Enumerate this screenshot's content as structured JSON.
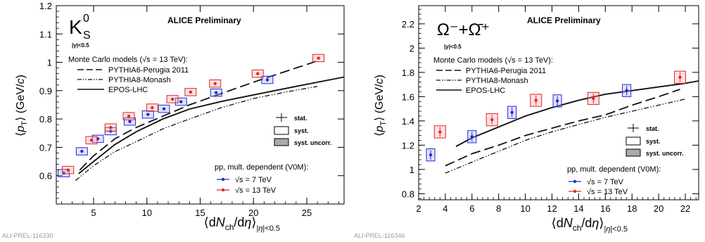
{
  "colors": {
    "seven": "#1f2bd6",
    "thirteen": "#e0262a",
    "seven_box": "#a9b0f2",
    "thirteen_box": "#f2a9a9",
    "curve": "#111111"
  },
  "chart_data": [
    {
      "type": "scatter",
      "preliminary": "ALICE Preliminary",
      "particle": "K",
      "particle_sup": "0",
      "particle_sub": "S",
      "rapidity": "|y|<0.5",
      "ylabel": "⟨p_T⟩ (GeV/c)",
      "xlabel": "⟨dN_ch/dη⟩_|η|<0.5",
      "xlim": [
        1.5,
        28.5
      ],
      "ylim": [
        0.5,
        1.2
      ],
      "xticks": [
        5,
        10,
        15,
        20,
        25
      ],
      "yticks": [
        0.6,
        0.7,
        0.8,
        0.9,
        1.0,
        1.1,
        1.2
      ],
      "xtick_labels": [
        "5",
        "10",
        "15",
        "20",
        "25"
      ],
      "ytick_labels": [
        "0.6",
        "0.7",
        "0.8",
        "0.9",
        "1",
        "1.1",
        "1.2"
      ],
      "footer": "ALI-PREL-116330",
      "mc_title": "Monte Carlo models (√s = 13 TeV):",
      "mc_models": [
        "PYTHIA6-Perugia 2011",
        "PYTHIA8-Monash",
        "EPOS-LHC"
      ],
      "unc_legend": [
        "stat.",
        "syst.",
        "syst. uncorr."
      ],
      "data_title": "pp, mult. dependent (V0M):",
      "data_legend": [
        "√s = 7 TeV",
        "√s = 13 TeV"
      ],
      "series": [
        {
          "name": "√s = 7 TeV",
          "x": [
            2.2,
            3.9,
            5.4,
            6.6,
            8.4,
            10.1,
            11.6,
            13.2,
            16.5,
            21.3
          ],
          "y": [
            0.609,
            0.686,
            0.73,
            0.757,
            0.791,
            0.816,
            0.836,
            0.861,
            0.893,
            0.938
          ]
        },
        {
          "name": "√s = 13 TeV",
          "x": [
            2.6,
            4.8,
            6.6,
            8.3,
            10.5,
            12.4,
            14.1,
            16.4,
            20.4,
            26.1
          ],
          "y": [
            0.62,
            0.725,
            0.77,
            0.81,
            0.84,
            0.87,
            0.895,
            0.925,
            0.96,
            1.015
          ]
        }
      ],
      "curves": [
        {
          "name": "PYTHIA6-Perugia 2011",
          "x": [
            3.7,
            5.0,
            7.0,
            9.0,
            11.5,
            14.0,
            17.0,
            20.0,
            24.0,
            26.0
          ],
          "y": [
            0.62,
            0.67,
            0.73,
            0.77,
            0.81,
            0.85,
            0.89,
            0.93,
            0.98,
            1.005
          ]
        },
        {
          "name": "PYTHIA8-Monash",
          "x": [
            3.3,
            5.0,
            7.0,
            9.0,
            11.5,
            14.0,
            17.0,
            20.0,
            23.0,
            26.0
          ],
          "y": [
            0.583,
            0.635,
            0.685,
            0.72,
            0.765,
            0.8,
            0.84,
            0.872,
            0.895,
            0.915
          ]
        },
        {
          "name": "EPOS-LHC",
          "x": [
            3.6,
            5.0,
            7.0,
            9.0,
            11.5,
            14.0,
            17.0,
            20.0,
            24.0,
            28.5
          ],
          "y": [
            0.607,
            0.65,
            0.71,
            0.755,
            0.8,
            0.835,
            0.862,
            0.885,
            0.915,
            0.948
          ]
        }
      ]
    },
    {
      "type": "scatter",
      "preliminary": "ALICE Preliminary",
      "particle": "Ω⁻+Ω̄⁺",
      "rapidity": "|y|<0.5",
      "ylabel": "⟨p_T⟩ (GeV/c)",
      "xlabel": "⟨dN_ch/dη⟩_|η|<0.5",
      "xlim": [
        2.0,
        23.0
      ],
      "ylim": [
        0.75,
        2.35
      ],
      "xticks": [
        2,
        4,
        6,
        8,
        10,
        12,
        14,
        16,
        18,
        20,
        22
      ],
      "yticks": [
        0.8,
        1.0,
        1.2,
        1.4,
        1.6,
        1.8,
        2.0,
        2.2
      ],
      "xtick_labels": [
        "2",
        "4",
        "6",
        "8",
        "10",
        "12",
        "14",
        "16",
        "18",
        "20",
        "22"
      ],
      "ytick_labels": [
        "0.8",
        "1",
        "1.2",
        "1.4",
        "1.6",
        "1.8",
        "2",
        "2.2"
      ],
      "footer": "ALI-PREL-116346",
      "mc_title": "Monte Carlo models (√s = 13 TeV):",
      "mc_models": [
        "PYTHIA6-Perugia 2011",
        "PYTHIA8-Monash",
        "EPOS-LHC"
      ],
      "unc_legend": [
        "stat.",
        "syst.",
        "syst. uncorr."
      ],
      "data_title": "pp, mult. dependent (V0M):",
      "data_legend": [
        "√s = 7 TeV",
        "√s = 13 TeV"
      ],
      "series": [
        {
          "name": "√s = 7 TeV",
          "x": [
            2.9,
            6.0,
            9.0,
            12.4,
            17.6
          ],
          "y": [
            1.12,
            1.27,
            1.47,
            1.565,
            1.65
          ]
        },
        {
          "name": "√s = 13 TeV",
          "x": [
            3.6,
            7.5,
            10.8,
            15.1,
            21.6
          ],
          "y": [
            1.31,
            1.41,
            1.57,
            1.585,
            1.76
          ]
        }
      ],
      "curves": [
        {
          "name": "PYTHIA6-Perugia 2011",
          "x": [
            4.0,
            6.0,
            8.0,
            10.0,
            12.0,
            14.0,
            16.0,
            18.0,
            20.0,
            21.6
          ],
          "y": [
            1.03,
            1.13,
            1.2,
            1.28,
            1.34,
            1.4,
            1.45,
            1.53,
            1.6,
            1.66
          ]
        },
        {
          "name": "PYTHIA8-Monash",
          "x": [
            4.0,
            6.0,
            8.0,
            10.0,
            12.0,
            14.0,
            16.0,
            18.0,
            20.0,
            22.0
          ],
          "y": [
            0.97,
            1.06,
            1.15,
            1.24,
            1.31,
            1.37,
            1.43,
            1.48,
            1.53,
            1.58
          ]
        },
        {
          "name": "EPOS-LHC",
          "x": [
            4.8,
            6.0,
            8.0,
            10.0,
            12.0,
            14.0,
            16.0,
            18.0,
            20.0,
            22.0,
            23.0
          ],
          "y": [
            1.19,
            1.26,
            1.35,
            1.44,
            1.51,
            1.57,
            1.62,
            1.65,
            1.68,
            1.71,
            1.73
          ]
        }
      ]
    }
  ]
}
